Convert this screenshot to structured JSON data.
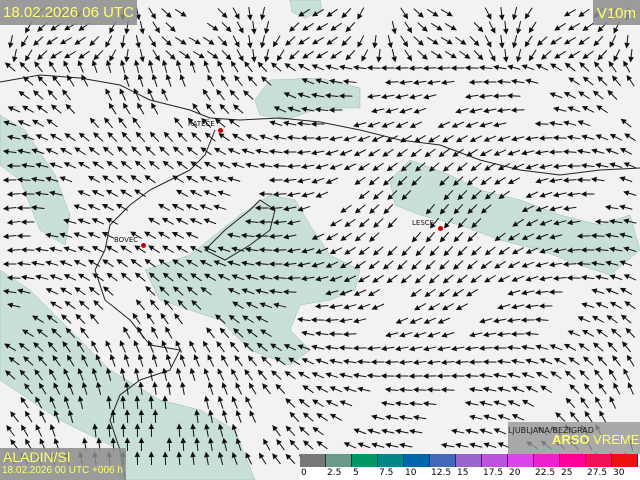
{
  "header": {
    "valid_time": "18.02.2026 06 UTC",
    "variable": "V10m"
  },
  "model": {
    "name": "ALADIN/SI",
    "run": "18.02.2026 00 UTC +006 h"
  },
  "logo": {
    "station": "LJUBLJANA/BEŽIGRAD",
    "brand_bold": "ARSO",
    "brand_light": " VREME"
  },
  "cities": [
    {
      "name": "RATEČE"
    },
    {
      "name": "BOVEC"
    },
    {
      "name": "LESCE"
    }
  ],
  "legend": {
    "labels": [
      "0",
      "2.5",
      "5",
      "7.5",
      "10",
      "12.5",
      "15",
      "17.5",
      "20",
      "22.5",
      "25",
      "27.5",
      "30"
    ],
    "colors": [
      "#777777",
      "#6a9a88",
      "#009966",
      "#008888",
      "#0066aa",
      "#4466bb",
      "#9966cc",
      "#bb55dd",
      "#dd44ee",
      "#ee22cc",
      "#ff0099",
      "#ee1155",
      "#ee1111"
    ]
  },
  "colors": {
    "terrain_green": "#c8e0d6",
    "arrow": "#111111",
    "label_text": "#ffff66"
  }
}
